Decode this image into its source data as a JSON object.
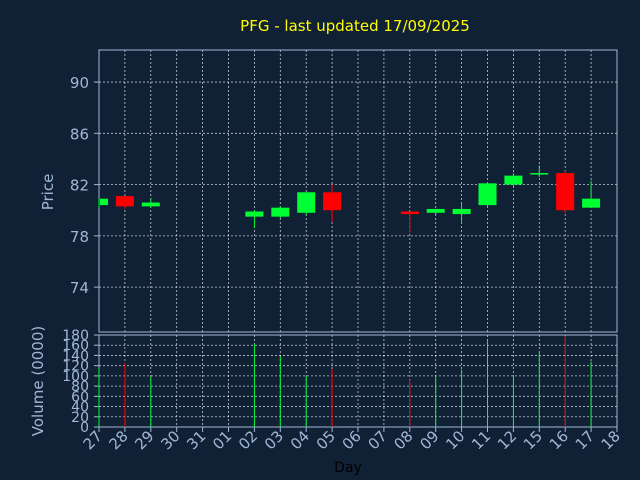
{
  "chart_data": {
    "type": "candlestick",
    "title": "PFG - last updated 17/09/2025",
    "xlabel": "Day",
    "price_panel": {
      "ylabel": "Price",
      "ylim": [
        70.5,
        92.5
      ],
      "yticks": [
        74,
        78,
        82,
        86,
        90
      ]
    },
    "volume_panel": {
      "ylabel": "Volume (0000)",
      "ylim": [
        0,
        180
      ],
      "yticks": [
        0,
        20,
        40,
        60,
        80,
        100,
        120,
        140,
        160,
        180
      ]
    },
    "grid": true,
    "x_tick_labels": [
      "27",
      "28",
      "29",
      "30",
      "31",
      "01",
      "02",
      "03",
      "04",
      "05",
      "06",
      "07",
      "08",
      "09",
      "10",
      "11",
      "12",
      "15",
      "16",
      "17",
      "18"
    ],
    "up_color": "#00ff33",
    "down_color": "#ff0000",
    "candles": [
      {
        "day": "27",
        "open": 80.4,
        "high": 80.9,
        "low": 80.2,
        "close": 80.9,
        "volume": 115
      },
      {
        "day": "28",
        "open": 81.1,
        "high": 81.1,
        "low": 80.1,
        "close": 80.3,
        "volume": 125
      },
      {
        "day": "29",
        "open": 80.3,
        "high": 80.9,
        "low": 80.2,
        "close": 80.6,
        "volume": 98
      },
      {
        "day": "02",
        "open": 79.5,
        "high": 80.0,
        "low": 78.6,
        "close": 79.9,
        "volume": 162
      },
      {
        "day": "03",
        "open": 79.5,
        "high": 80.3,
        "low": 79.4,
        "close": 80.2,
        "volume": 138
      },
      {
        "day": "04",
        "open": 79.8,
        "high": 81.4,
        "low": 79.6,
        "close": 81.4,
        "volume": 100
      },
      {
        "day": "05",
        "open": 81.4,
        "high": 82.0,
        "low": 79.1,
        "close": 80.0,
        "volume": 113
      },
      {
        "day": "08",
        "open": 79.9,
        "high": 79.9,
        "low": 78.2,
        "close": 79.7,
        "volume": 92
      },
      {
        "day": "09",
        "open": 79.8,
        "high": 80.1,
        "low": 79.7,
        "close": 80.1,
        "volume": 100
      },
      {
        "day": "10",
        "open": 79.7,
        "high": 80.5,
        "low": 79.1,
        "close": 80.1,
        "volume": 112
      },
      {
        "day": "11",
        "open": 80.4,
        "high": 82.2,
        "low": 80.3,
        "close": 82.1,
        "volume": 168
      },
      {
        "day": "12",
        "open": 82.0,
        "high": 82.9,
        "low": 81.9,
        "close": 82.7,
        "volume": 98
      },
      {
        "day": "15",
        "open": 82.8,
        "high": 83.5,
        "low": 82.6,
        "close": 82.9,
        "volume": 146
      },
      {
        "day": "16",
        "open": 82.9,
        "high": 83.1,
        "low": 79.8,
        "close": 80.0,
        "volume": 178
      },
      {
        "day": "17",
        "open": 80.2,
        "high": 82.3,
        "low": 80.2,
        "close": 80.9,
        "volume": 128
      }
    ]
  }
}
